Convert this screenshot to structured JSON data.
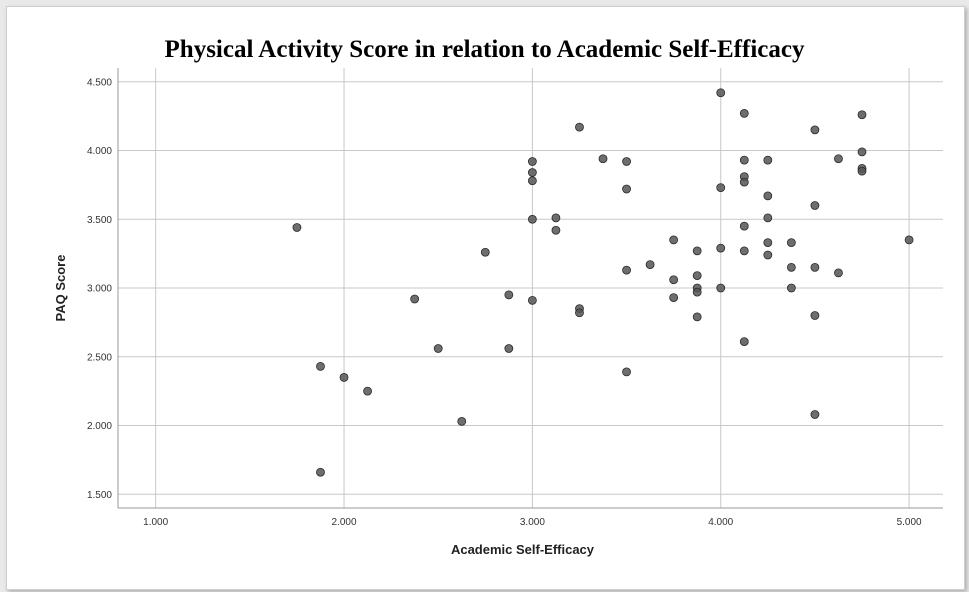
{
  "chart_data": {
    "type": "scatter",
    "title": "Physical Activity Score in relation to Academic Self-Efficacy",
    "xlabel": "Academic Self-Efficacy",
    "ylabel": "PAQ Score",
    "xlim": [
      0.8,
      5.18
    ],
    "ylim": [
      1.4,
      4.6
    ],
    "xticks": [
      1.0,
      2.0,
      3.0,
      4.0,
      5.0
    ],
    "xtick_labels": [
      "1.000",
      "2.000",
      "3.000",
      "4.000",
      "5.000"
    ],
    "yticks": [
      1.5,
      2.0,
      2.5,
      3.0,
      3.5,
      4.0,
      4.5
    ],
    "ytick_labels": [
      "1.500",
      "2.000",
      "2.500",
      "3.000",
      "3.500",
      "4.000",
      "4.500"
    ],
    "grid": true,
    "point_color": "#555555",
    "points": [
      [
        1.75,
        3.44
      ],
      [
        1.875,
        2.43
      ],
      [
        1.875,
        1.66
      ],
      [
        2.0,
        2.35
      ],
      [
        2.125,
        2.25
      ],
      [
        2.375,
        2.92
      ],
      [
        2.5,
        2.56
      ],
      [
        2.625,
        2.03
      ],
      [
        2.75,
        3.26
      ],
      [
        2.875,
        2.95
      ],
      [
        2.875,
        2.56
      ],
      [
        3.0,
        3.92
      ],
      [
        3.0,
        3.84
      ],
      [
        3.0,
        3.78
      ],
      [
        3.0,
        3.5
      ],
      [
        3.0,
        2.91
      ],
      [
        3.125,
        3.51
      ],
      [
        3.125,
        3.42
      ],
      [
        3.25,
        4.17
      ],
      [
        3.25,
        2.85
      ],
      [
        3.25,
        2.82
      ],
      [
        3.375,
        3.94
      ],
      [
        3.5,
        3.92
      ],
      [
        3.5,
        3.72
      ],
      [
        3.5,
        3.13
      ],
      [
        3.5,
        2.39
      ],
      [
        3.625,
        3.17
      ],
      [
        3.75,
        3.35
      ],
      [
        3.75,
        3.06
      ],
      [
        3.75,
        2.93
      ],
      [
        3.875,
        3.27
      ],
      [
        3.875,
        3.09
      ],
      [
        3.875,
        3.0
      ],
      [
        3.875,
        2.97
      ],
      [
        3.875,
        2.79
      ],
      [
        4.0,
        4.42
      ],
      [
        4.0,
        3.73
      ],
      [
        4.0,
        3.29
      ],
      [
        4.0,
        3.0
      ],
      [
        4.125,
        4.27
      ],
      [
        4.125,
        3.93
      ],
      [
        4.125,
        3.81
      ],
      [
        4.125,
        3.77
      ],
      [
        4.125,
        3.45
      ],
      [
        4.125,
        3.27
      ],
      [
        4.125,
        2.61
      ],
      [
        4.25,
        3.93
      ],
      [
        4.25,
        3.67
      ],
      [
        4.25,
        3.51
      ],
      [
        4.25,
        3.33
      ],
      [
        4.25,
        3.24
      ],
      [
        4.375,
        3.33
      ],
      [
        4.375,
        3.15
      ],
      [
        4.375,
        3.0
      ],
      [
        4.5,
        4.15
      ],
      [
        4.5,
        3.6
      ],
      [
        4.5,
        3.15
      ],
      [
        4.5,
        2.8
      ],
      [
        4.5,
        2.08
      ],
      [
        4.625,
        3.94
      ],
      [
        4.625,
        3.11
      ],
      [
        4.75,
        4.26
      ],
      [
        4.75,
        3.99
      ],
      [
        4.75,
        3.87
      ],
      [
        4.75,
        3.85
      ],
      [
        5.0,
        3.35
      ]
    ]
  }
}
